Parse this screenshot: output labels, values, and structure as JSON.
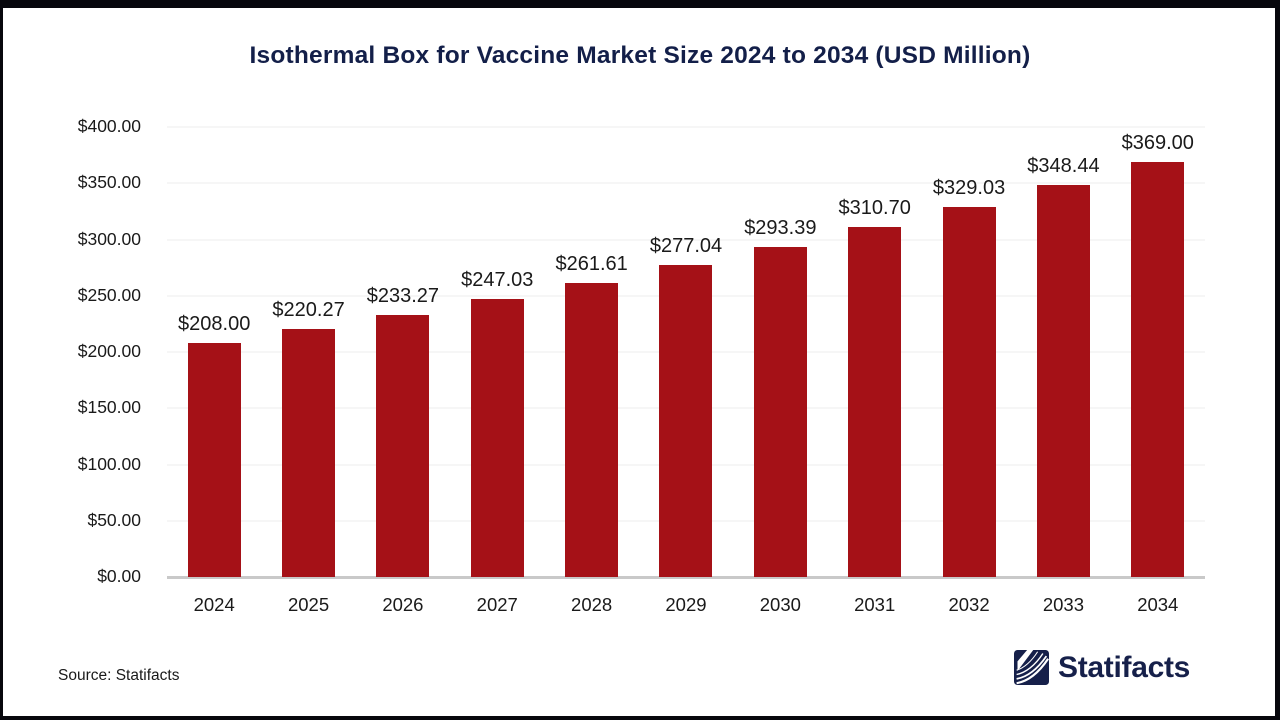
{
  "title": "Isothermal Box for Vaccine Market Size 2024 to 2034 (USD Million)",
  "colors": {
    "bar_red": "#a51117",
    "title_navy": "#131f49",
    "brand_navy": "#16204a",
    "frame_dark": "#07070d",
    "gridline": "#ececec",
    "axis_line": "#c9c9c9"
  },
  "chart_data": {
    "type": "bar",
    "title": "Isothermal Box for Vaccine Market Size 2024 to 2034 (USD Million)",
    "categories": [
      "2024",
      "2025",
      "2026",
      "2027",
      "2028",
      "2029",
      "2030",
      "2031",
      "2032",
      "2033",
      "2034"
    ],
    "values": [
      208.0,
      220.27,
      233.27,
      247.03,
      261.61,
      277.04,
      293.39,
      310.7,
      329.03,
      348.44,
      369.0
    ],
    "value_labels": [
      "$208.00",
      "$220.27",
      "$233.27",
      "$247.03",
      "$261.61",
      "$277.04",
      "$293.39",
      "$310.70",
      "$329.03",
      "$348.44",
      "$369.00"
    ],
    "xlabel": "",
    "ylabel": "",
    "ylim": [
      0,
      400
    ],
    "ytick_step": 50,
    "yticks": [
      "$400.00",
      "$350.00",
      "$300.00",
      "$250.00",
      "$200.00",
      "$150.00",
      "$100.00",
      "$50.00",
      "$0.00"
    ],
    "grid": true,
    "legend": "none",
    "bar_color": "#a51117"
  },
  "footer": {
    "source_label": "Source: Statifacts",
    "brand": "Statifacts"
  }
}
